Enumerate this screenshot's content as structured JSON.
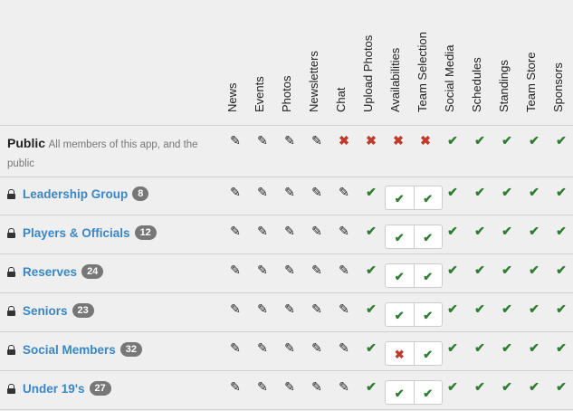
{
  "columns": [
    "News",
    "Events",
    "Photos",
    "Newsletters",
    "Chat",
    "Upload Photos",
    "Availabilities",
    "Team Selection",
    "Social Media",
    "Schedules",
    "Standings",
    "Team Store",
    "Sponsors"
  ],
  "public": {
    "name": "Public",
    "description": "All members of this app, and the public",
    "permissions": [
      "edit",
      "edit",
      "edit",
      "edit",
      "no",
      "no",
      "no",
      "no",
      "yes",
      "yes",
      "yes",
      "yes",
      "yes"
    ]
  },
  "groups": [
    {
      "name": "Leadership Group",
      "count": "8",
      "availabilities": "yes",
      "team_selection": "yes"
    },
    {
      "name": "Players & Officials",
      "count": "12",
      "availabilities": "yes",
      "team_selection": "yes"
    },
    {
      "name": "Reserves",
      "count": "24",
      "availabilities": "yes",
      "team_selection": "yes"
    },
    {
      "name": "Seniors",
      "count": "23",
      "availabilities": "yes",
      "team_selection": "yes"
    },
    {
      "name": "Social Members",
      "count": "32",
      "availabilities": "no",
      "team_selection": "yes"
    },
    {
      "name": "Under 19's",
      "count": "27",
      "availabilities": "yes",
      "team_selection": "yes"
    }
  ],
  "colors": {
    "link": "#3a87c8",
    "check": "#2e7d32",
    "cross": "#c0392b",
    "badge": "#777777"
  }
}
